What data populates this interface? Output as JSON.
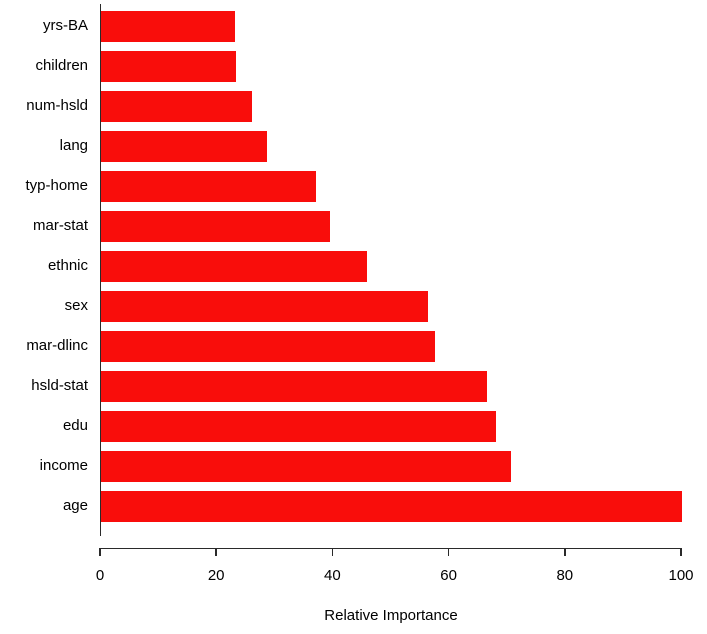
{
  "chart_data": {
    "type": "bar",
    "orientation": "horizontal",
    "categories": [
      "yrs-BA",
      "children",
      "num-hsld",
      "lang",
      "typ-home",
      "mar-stat",
      "ethnic",
      "sex",
      "mar-dlinc",
      "hsld-stat",
      "edu",
      "income",
      "age"
    ],
    "values": [
      23,
      23.3,
      26,
      28.5,
      37,
      39.5,
      45.7,
      56.3,
      57.5,
      66.5,
      68,
      70.5,
      100
    ],
    "title": "",
    "xlabel": "Relative Importance",
    "ylabel": "",
    "xlim": [
      0,
      100
    ],
    "xticks": [
      0,
      20,
      40,
      60,
      80,
      100
    ],
    "bar_color": "#f90d0b",
    "axis_color": "#2a2a2a",
    "text_color": "#000000",
    "background_color": "#ffffff",
    "grid": false,
    "legend": null
  }
}
